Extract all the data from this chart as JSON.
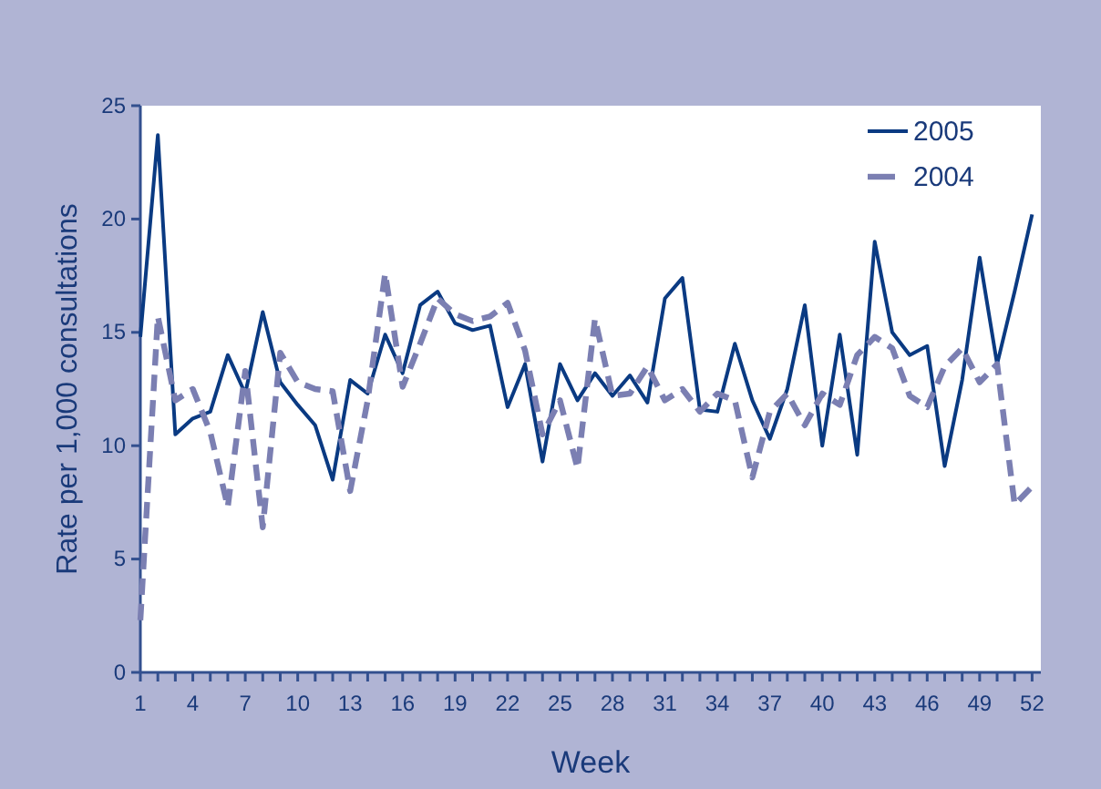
{
  "chart_data": {
    "type": "line",
    "xlabel": "Week",
    "ylabel": "Rate per 1,000 consultations",
    "x": [
      1,
      2,
      3,
      4,
      5,
      6,
      7,
      8,
      9,
      10,
      11,
      12,
      13,
      14,
      15,
      16,
      17,
      18,
      19,
      20,
      21,
      22,
      23,
      24,
      25,
      26,
      27,
      28,
      29,
      30,
      31,
      32,
      33,
      34,
      35,
      36,
      37,
      38,
      39,
      40,
      41,
      42,
      43,
      44,
      45,
      46,
      47,
      48,
      49,
      50,
      51,
      52
    ],
    "series": [
      {
        "name": "2005",
        "color": "#0a3a82",
        "line_style": "solid",
        "values": [
          14.8,
          23.7,
          10.5,
          11.2,
          11.5,
          14.0,
          12.3,
          15.9,
          12.8,
          11.8,
          10.9,
          8.5,
          12.9,
          12.3,
          14.9,
          13.2,
          16.2,
          16.8,
          15.4,
          15.1,
          15.3,
          11.7,
          13.6,
          9.3,
          13.6,
          12.0,
          13.2,
          12.2,
          13.1,
          11.9,
          16.5,
          17.4,
          11.6,
          11.5,
          14.5,
          12.0,
          10.3,
          12.5,
          16.2,
          10.0,
          14.9,
          9.6,
          19.0,
          15.0,
          14.0,
          14.4,
          9.1,
          12.9,
          18.3,
          13.6,
          16.8,
          20.2
        ]
      },
      {
        "name": "2004",
        "color": "#7b7fb2",
        "line_style": "dashed",
        "values": [
          2.3,
          15.7,
          12.0,
          12.5,
          10.6,
          7.3,
          13.3,
          6.4,
          14.1,
          12.8,
          12.5,
          12.4,
          8.0,
          12.0,
          17.6,
          12.6,
          14.5,
          16.5,
          15.8,
          15.5,
          15.7,
          16.3,
          14.2,
          10.5,
          12.0,
          9.0,
          15.6,
          12.2,
          12.3,
          13.5,
          12.0,
          12.5,
          11.5,
          12.3,
          12.0,
          8.6,
          11.5,
          12.3,
          10.9,
          12.3,
          11.8,
          14.0,
          14.8,
          14.3,
          12.2,
          11.7,
          13.5,
          14.3,
          12.8,
          13.6,
          7.4,
          8.2
        ]
      }
    ],
    "xlim": [
      1,
      52.5
    ],
    "xticks": [
      1,
      {
        "value": 2,
        "label": null
      },
      {
        "value": 3,
        "label": null
      },
      4,
      {
        "value": 5,
        "label": null
      },
      {
        "value": 6,
        "label": null
      },
      7,
      {
        "value": 8,
        "label": null
      },
      {
        "value": 9,
        "label": null
      },
      10,
      {
        "value": 11,
        "label": null
      },
      {
        "value": 12,
        "label": null
      },
      13,
      {
        "value": 14,
        "label": null
      },
      {
        "value": 15,
        "label": null
      },
      16,
      {
        "value": 17,
        "label": null
      },
      {
        "value": 18,
        "label": null
      },
      19,
      {
        "value": 20,
        "label": null
      },
      {
        "value": 21,
        "label": null
      },
      22,
      {
        "value": 23,
        "label": null
      },
      {
        "value": 24,
        "label": null
      },
      25,
      {
        "value": 26,
        "label": null
      },
      {
        "value": 27,
        "label": null
      },
      28,
      {
        "value": 29,
        "label": null
      },
      {
        "value": 30,
        "label": null
      },
      31,
      {
        "value": 32,
        "label": null
      },
      {
        "value": 33,
        "label": null
      },
      34,
      {
        "value": 35,
        "label": null
      },
      {
        "value": 36,
        "label": null
      },
      37,
      {
        "value": 38,
        "label": null
      },
      {
        "value": 39,
        "label": null
      },
      40,
      {
        "value": 41,
        "label": null
      },
      {
        "value": 42,
        "label": null
      },
      43,
      {
        "value": 44,
        "label": null
      },
      {
        "value": 45,
        "label": null
      },
      46,
      {
        "value": 47,
        "label": null
      },
      {
        "value": 48,
        "label": null
      },
      49,
      {
        "value": 50,
        "label": null
      },
      {
        "value": 51,
        "label": null
      },
      52
    ],
    "ylim": [
      0,
      25
    ],
    "yticks": [
      0,
      5,
      10,
      15,
      20,
      25
    ],
    "legend": "top right",
    "marker": "none"
  }
}
